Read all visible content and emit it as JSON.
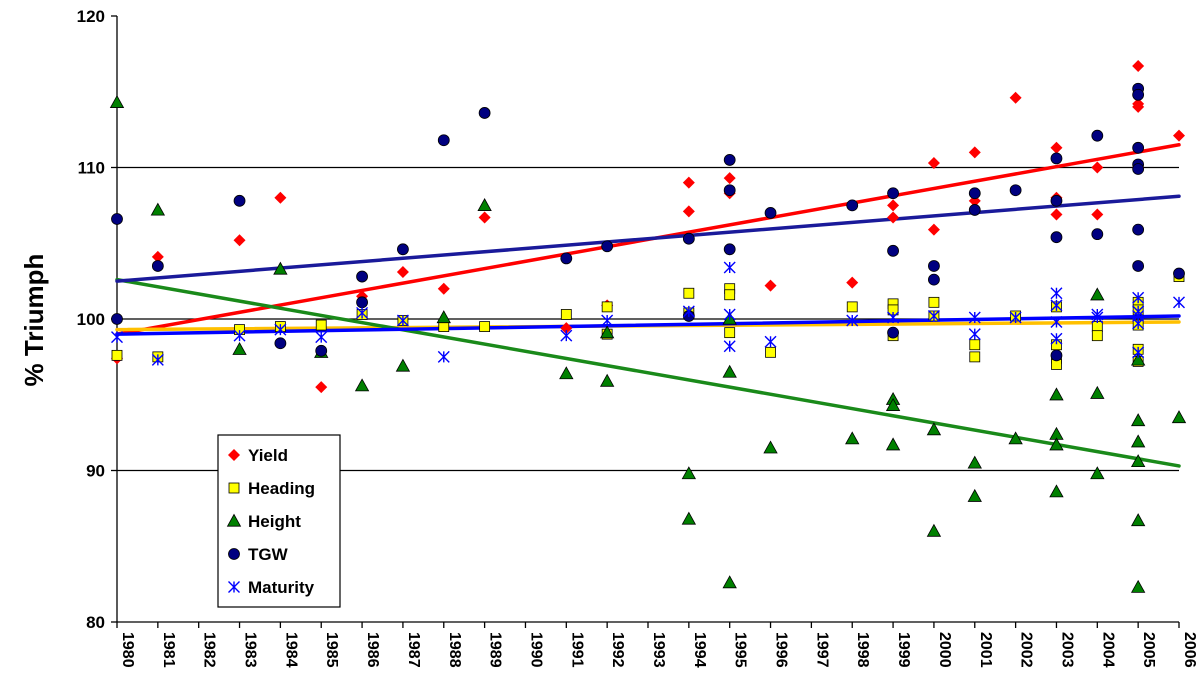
{
  "chart_data": {
    "type": "scatter",
    "title": "",
    "xlabel": "",
    "ylabel": "% Triumph",
    "xlim": [
      1980,
      2006
    ],
    "ylim": [
      80,
      120
    ],
    "y_ticks": [
      "80",
      "90",
      "100",
      "110",
      "120"
    ],
    "x_ticks": [
      "1980",
      "1981",
      "1982",
      "1983",
      "1984",
      "1985",
      "1986",
      "1987",
      "1988",
      "1989",
      "1990",
      "1991",
      "1992",
      "1993",
      "1994",
      "1995",
      "1996",
      "1997",
      "1998",
      "1999",
      "2000",
      "2001",
      "2002",
      "2003",
      "2004",
      "2005",
      "2006"
    ],
    "grid": "horizontal major lines at 90, 100, 110",
    "legend_position": "lower-left",
    "series": [
      {
        "name": "Yield",
        "marker": "diamond",
        "color": "#FF0000",
        "points": [
          [
            1980,
            97.4
          ],
          [
            1981,
            104.1
          ],
          [
            1983,
            105.2
          ],
          [
            1984,
            108
          ],
          [
            1985,
            95.5
          ],
          [
            1986,
            101.5
          ],
          [
            1987,
            103.1
          ],
          [
            1988,
            102
          ],
          [
            1989,
            106.7
          ],
          [
            1991,
            99.4
          ],
          [
            1992,
            100.9
          ],
          [
            1994,
            109
          ],
          [
            1994,
            107.1
          ],
          [
            1995,
            109.3
          ],
          [
            1995,
            108.3
          ],
          [
            1996,
            102.2
          ],
          [
            1998,
            102.4
          ],
          [
            1999,
            108.3
          ],
          [
            1999,
            107.5
          ],
          [
            1999,
            106.7
          ],
          [
            2000,
            110.3
          ],
          [
            2000,
            105.9
          ],
          [
            2001,
            111
          ],
          [
            2001,
            107.8
          ],
          [
            2002,
            114.6
          ],
          [
            2003,
            111.3
          ],
          [
            2003,
            108
          ],
          [
            2003,
            106.9
          ],
          [
            2004,
            110
          ],
          [
            2004,
            106.9
          ],
          [
            2005,
            116.7
          ],
          [
            2005,
            114.2
          ],
          [
            2005,
            114
          ],
          [
            2005,
            110
          ],
          [
            2006,
            112.1
          ]
        ],
        "trend": [
          [
            1980,
            99.0
          ],
          [
            2006,
            111.5
          ]
        ]
      },
      {
        "name": "Heading",
        "marker": "square",
        "color": "#FFFF00",
        "points": [
          [
            1980,
            97.6
          ],
          [
            1981,
            97.5
          ],
          [
            1983,
            99.3
          ],
          [
            1984,
            99.5
          ],
          [
            1985,
            99.6
          ],
          [
            1986,
            100.3
          ],
          [
            1987,
            99.9
          ],
          [
            1988,
            99.5
          ],
          [
            1989,
            99.5
          ],
          [
            1991,
            100.3
          ],
          [
            1992,
            100.8
          ],
          [
            1992,
            99
          ],
          [
            1994,
            101.7
          ],
          [
            1994,
            100.4
          ],
          [
            1995,
            102
          ],
          [
            1995,
            101.6
          ],
          [
            1995,
            99.1
          ],
          [
            1996,
            97.8
          ],
          [
            1998,
            100.8
          ],
          [
            1999,
            101
          ],
          [
            1999,
            100.6
          ],
          [
            1999,
            98.9
          ],
          [
            2000,
            101.1
          ],
          [
            2000,
            100.2
          ],
          [
            2001,
            98.3
          ],
          [
            2001,
            97.5
          ],
          [
            2002,
            100.2
          ],
          [
            2003,
            100.8
          ],
          [
            2003,
            98.3
          ],
          [
            2003,
            97.4
          ],
          [
            2003,
            97
          ],
          [
            2004,
            99.5
          ],
          [
            2004,
            98.9
          ],
          [
            2005,
            101.1
          ],
          [
            2005,
            100.6
          ],
          [
            2005,
            99.6
          ],
          [
            2005,
            98
          ],
          [
            2005,
            97.2
          ],
          [
            2006,
            102.8
          ]
        ],
        "trend": [
          [
            1980,
            99.3
          ],
          [
            2006,
            99.8
          ]
        ]
      },
      {
        "name": "Height",
        "marker": "triangle",
        "color": "#008000",
        "points": [
          [
            1980,
            114.3
          ],
          [
            1981,
            107.2
          ],
          [
            1983,
            98
          ],
          [
            1984,
            103.3
          ],
          [
            1985,
            97.8
          ],
          [
            1986,
            95.6
          ],
          [
            1987,
            96.9
          ],
          [
            1988,
            100.1
          ],
          [
            1989,
            107.5
          ],
          [
            1991,
            96.4
          ],
          [
            1992,
            95.9
          ],
          [
            1992,
            99.1
          ],
          [
            1994,
            89.8
          ],
          [
            1994,
            86.8
          ],
          [
            1995,
            96.5
          ],
          [
            1995,
            82.6
          ],
          [
            1995,
            100
          ],
          [
            1996,
            91.5
          ],
          [
            1998,
            92.1
          ],
          [
            1999,
            94.7
          ],
          [
            1999,
            94.3
          ],
          [
            1999,
            91.7
          ],
          [
            2000,
            92.7
          ],
          [
            2000,
            86
          ],
          [
            2001,
            90.5
          ],
          [
            2001,
            88.3
          ],
          [
            2002,
            92.1
          ],
          [
            2003,
            95
          ],
          [
            2003,
            92.4
          ],
          [
            2003,
            91.7
          ],
          [
            2003,
            88.6
          ],
          [
            2004,
            101.6
          ],
          [
            2004,
            95.1
          ],
          [
            2004,
            89.8
          ],
          [
            2005,
            97.3
          ],
          [
            2005,
            93.3
          ],
          [
            2005,
            91.9
          ],
          [
            2005,
            90.6
          ],
          [
            2005,
            86.7
          ],
          [
            2005,
            82.3
          ],
          [
            2006,
            93.5
          ]
        ],
        "trend": [
          [
            1980,
            102.6
          ],
          [
            2006,
            90.3
          ]
        ]
      },
      {
        "name": "TGW",
        "marker": "circle",
        "color": "#000080",
        "points": [
          [
            1980,
            106.6
          ],
          [
            1980,
            100
          ],
          [
            1981,
            103.5
          ],
          [
            1983,
            107.8
          ],
          [
            1984,
            98.4
          ],
          [
            1985,
            97.9
          ],
          [
            1986,
            102.8
          ],
          [
            1986,
            101.1
          ],
          [
            1987,
            104.6
          ],
          [
            1988,
            111.8
          ],
          [
            1989,
            113.6
          ],
          [
            1991,
            104
          ],
          [
            1992,
            104.8
          ],
          [
            1994,
            105.3
          ],
          [
            1994,
            100.2
          ],
          [
            1995,
            110.5
          ],
          [
            1995,
            108.5
          ],
          [
            1995,
            104.6
          ],
          [
            1996,
            107
          ],
          [
            1998,
            107.5
          ],
          [
            1999,
            108.3
          ],
          [
            1999,
            104.5
          ],
          [
            1999,
            99.1
          ],
          [
            2000,
            103.5
          ],
          [
            2000,
            102.6
          ],
          [
            2001,
            108.3
          ],
          [
            2001,
            107.2
          ],
          [
            2002,
            108.5
          ],
          [
            2003,
            110.6
          ],
          [
            2003,
            107.8
          ],
          [
            2003,
            105.4
          ],
          [
            2003,
            97.6
          ],
          [
            2004,
            112.1
          ],
          [
            2004,
            105.6
          ],
          [
            2005,
            115.2
          ],
          [
            2005,
            114.8
          ],
          [
            2005,
            111.3
          ],
          [
            2005,
            110.2
          ],
          [
            2005,
            109.9
          ],
          [
            2005,
            105.9
          ],
          [
            2005,
            103.5
          ],
          [
            2006,
            103
          ]
        ],
        "trend": [
          [
            1980,
            102.5
          ],
          [
            2006,
            108.1
          ]
        ]
      },
      {
        "name": "Maturity",
        "marker": "asterisk",
        "color": "#0000FF",
        "points": [
          [
            1980,
            98.8
          ],
          [
            1981,
            97.3
          ],
          [
            1983,
            98.9
          ],
          [
            1984,
            99.3
          ],
          [
            1985,
            98.8
          ],
          [
            1986,
            100.4
          ],
          [
            1987,
            99.9
          ],
          [
            1988,
            97.5
          ],
          [
            1991,
            98.9
          ],
          [
            1992,
            99.9
          ],
          [
            1994,
            100.5
          ],
          [
            1995,
            103.4
          ],
          [
            1995,
            100.3
          ],
          [
            1995,
            98.2
          ],
          [
            1996,
            98.5
          ],
          [
            1998,
            99.9
          ],
          [
            1999,
            100.1
          ],
          [
            2000,
            100.2
          ],
          [
            2001,
            100.1
          ],
          [
            2001,
            99
          ],
          [
            2002,
            100.1
          ],
          [
            2003,
            101.7
          ],
          [
            2003,
            100.9
          ],
          [
            2003,
            99.8
          ],
          [
            2003,
            98.7
          ],
          [
            2004,
            100.3
          ],
          [
            2004,
            100.1
          ],
          [
            2005,
            101.4
          ],
          [
            2005,
            100.5
          ],
          [
            2005,
            100.2
          ],
          [
            2005,
            99.7
          ],
          [
            2005,
            97.8
          ],
          [
            2006,
            101.1
          ]
        ],
        "trend": [
          [
            1980,
            99.0
          ],
          [
            2006,
            100.2
          ]
        ]
      }
    ]
  }
}
